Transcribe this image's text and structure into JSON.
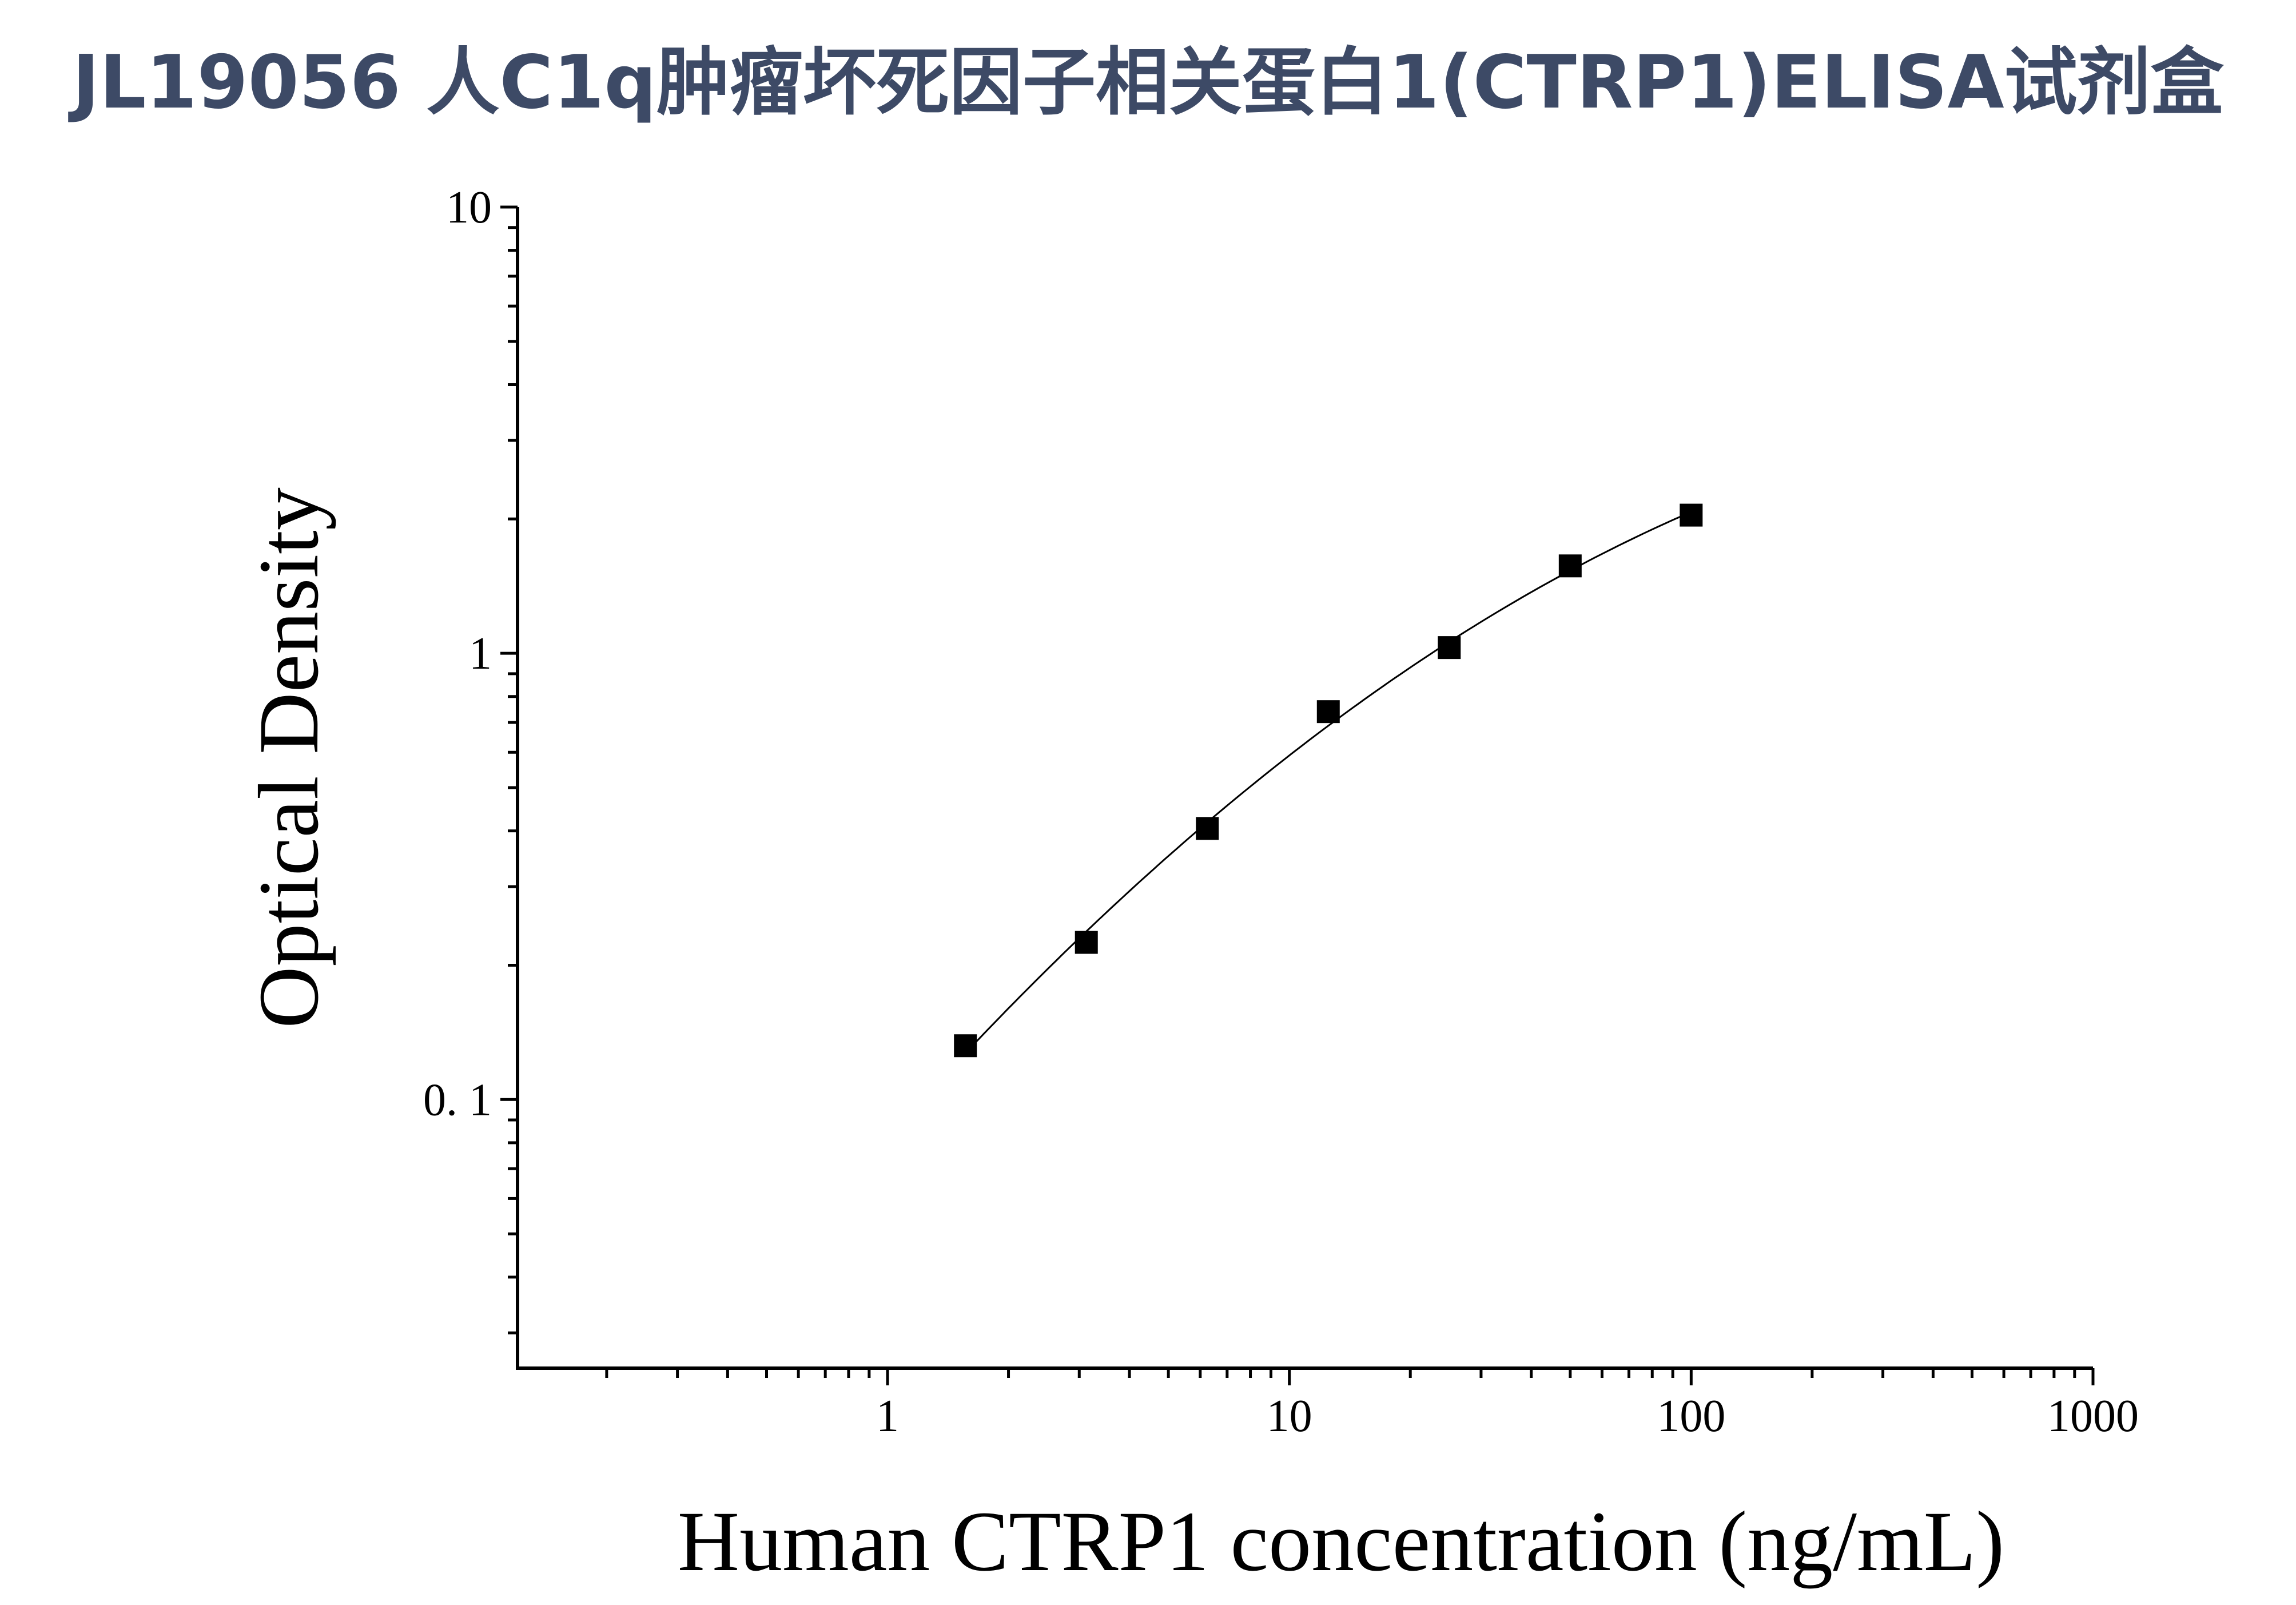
{
  "title": "JL19056 人C1q肿瘤坏死因子相关蛋白1(CTRP1)ELISA试剂盒",
  "chart_data": {
    "type": "scatter",
    "title": "JL19056 人C1q肿瘤坏死因子相关蛋白1(CTRP1)ELISA试剂盒",
    "xlabel": "Human CTRP1 concentration (ng/mL)",
    "ylabel": "Optical Density",
    "x_scale": "log",
    "y_scale": "log",
    "xlim": [
      0.12,
      1000
    ],
    "ylim": [
      0.025,
      10
    ],
    "x_ticks": [
      {
        "value": 1,
        "label": "1"
      },
      {
        "value": 10,
        "label": "10"
      },
      {
        "value": 100,
        "label": "100"
      },
      {
        "value": 1000,
        "label": "1000"
      }
    ],
    "y_ticks": [
      {
        "value": 0.1,
        "label": "0. 1"
      },
      {
        "value": 1,
        "label": "1"
      },
      {
        "value": 10,
        "label": "10"
      }
    ],
    "grid": false,
    "legend": "none",
    "marker": "square",
    "marker_color": "#000000",
    "curve": "fitted",
    "series": [
      {
        "x": [
          1.5625,
          3.125,
          6.25,
          12.5,
          25,
          50,
          100
        ],
        "y": [
          0.132,
          0.225,
          0.405,
          0.74,
          1.03,
          1.57,
          2.04
        ]
      }
    ]
  }
}
